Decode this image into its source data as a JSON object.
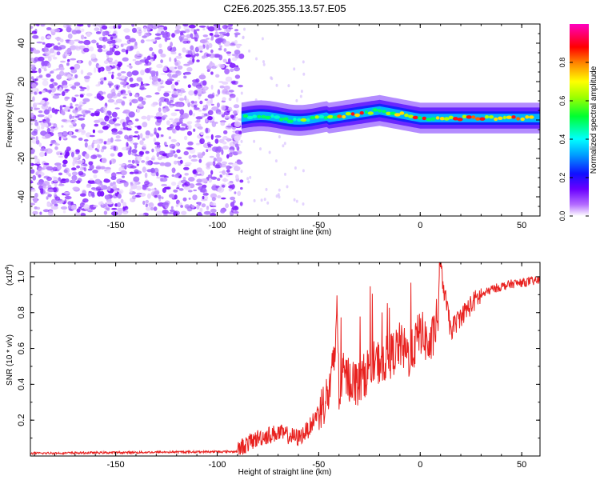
{
  "title": "C2E6.2025.355.13.57.E05",
  "chart_data": [
    {
      "type": "heatmap",
      "name": "spectrogram",
      "xlabel": "Height of straight line (km)",
      "ylabel": "Frequency (Hz)",
      "xlim": [
        -192,
        59
      ],
      "ylim": [
        -50,
        50
      ],
      "xticks": [
        -150,
        -100,
        -50,
        0,
        50
      ],
      "yticks": [
        -40,
        -20,
        0,
        20,
        40
      ],
      "noise_region_x": [
        -192,
        -88
      ],
      "signal_start_x": -88,
      "colorbar": {
        "label": "Normalized spectral amplitude",
        "range": [
          0,
          1
        ],
        "ticks": [
          "0.0",
          "0.2",
          "0.4",
          "0.6",
          "0.8"
        ]
      },
      "colormap": [
        "#ffffff",
        "#8a00ff",
        "#3000ff",
        "#0090ff",
        "#00ffff",
        "#00ff40",
        "#c8ff00",
        "#ffff00",
        "#ff8000",
        "#ff0000",
        "#ff00ff"
      ]
    },
    {
      "type": "line",
      "name": "snr",
      "xlabel": "Height of straight line (km)",
      "ylabel": "SNR (10 * v/v)",
      "multiplier": "(x10",
      "multiplier_exp": "4",
      "multiplier_close": ")",
      "xlim": [
        -192,
        59
      ],
      "ylim": [
        0,
        1.08
      ],
      "xticks": [
        -150,
        -100,
        -50,
        0,
        50
      ],
      "yticks": [
        "0.2",
        "0.4",
        "0.6",
        "0.8",
        "1.0"
      ],
      "color": "#e8211f",
      "x": [
        -192,
        -90,
        -88,
        -80,
        -70,
        -60,
        -55,
        -50,
        -45,
        -42,
        -41,
        -40,
        -38,
        -30,
        -25,
        -15,
        -10,
        -5,
        0,
        5,
        9,
        10,
        15,
        20,
        28,
        35,
        45,
        59
      ],
      "y": [
        0.015,
        0.025,
        0.05,
        0.1,
        0.13,
        0.1,
        0.15,
        0.25,
        0.35,
        0.55,
        0.9,
        0.35,
        0.45,
        0.4,
        0.5,
        0.55,
        0.62,
        0.55,
        0.7,
        0.6,
        0.8,
        1.05,
        0.7,
        0.78,
        0.88,
        0.93,
        0.96,
        0.98
      ]
    }
  ]
}
